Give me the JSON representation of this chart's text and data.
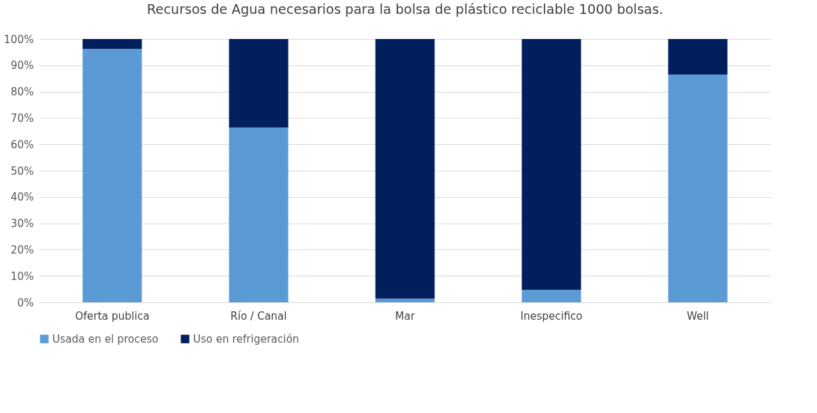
{
  "chart_data": {
    "type": "bar",
    "stacked": true,
    "title": "Recursos de Agua necesarios para la bolsa de plástico reciclable 1000 bolsas.",
    "categories": [
      "Oferta publica",
      "Río / Canal",
      "Mar",
      "Inespecifico",
      "Well"
    ],
    "series": [
      {
        "name": "Usada en el proceso",
        "color": "#5b9bd5",
        "values": [
          96.2,
          66.4,
          1.4,
          4.7,
          86.5
        ]
      },
      {
        "name": "Uso en refrigeración",
        "color": "#001f5c",
        "values": [
          3.8,
          33.6,
          98.6,
          95.3,
          13.5
        ]
      }
    ],
    "ylim": [
      0,
      100
    ],
    "yticks": [
      {
        "value": 0,
        "label": "0%"
      },
      {
        "value": 10,
        "label": "10%"
      },
      {
        "value": 20,
        "label": "20%"
      },
      {
        "value": 30,
        "label": "30%"
      },
      {
        "value": 40,
        "label": "40%"
      },
      {
        "value": 50,
        "label": "50%"
      },
      {
        "value": 60,
        "label": "60%"
      },
      {
        "value": 70,
        "label": "70%"
      },
      {
        "value": 80,
        "label": "80%"
      },
      {
        "value": 90,
        "label": "90%"
      },
      {
        "value": 100,
        "label": "100%"
      }
    ],
    "grid": "y",
    "legend": "bottom"
  }
}
